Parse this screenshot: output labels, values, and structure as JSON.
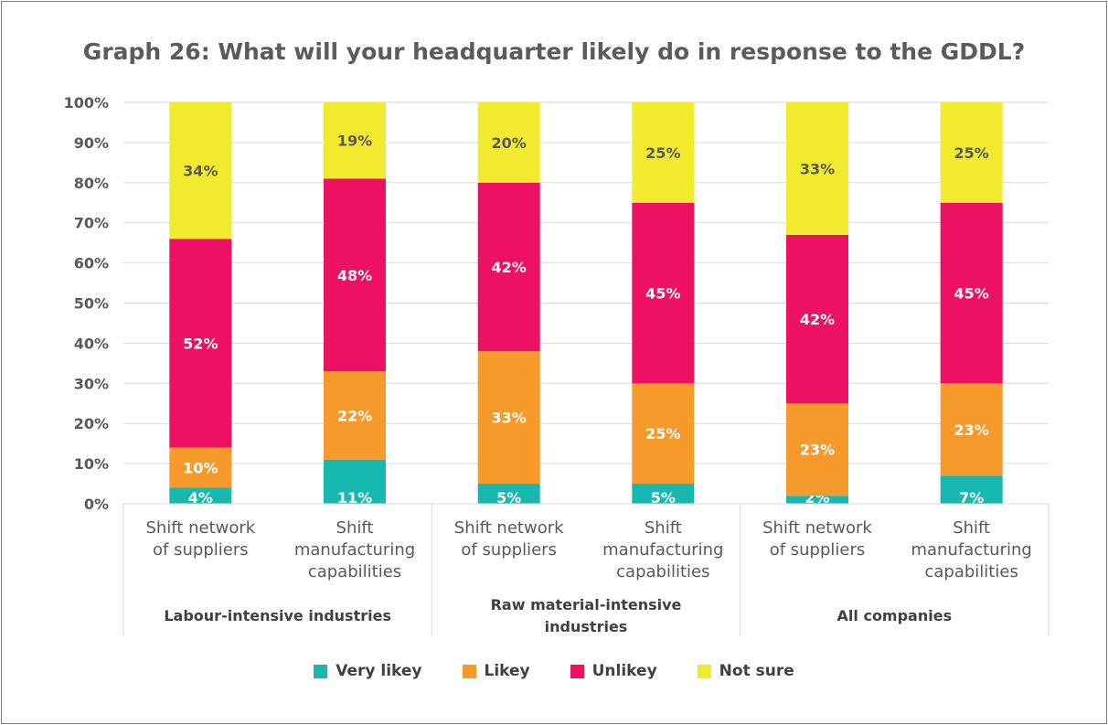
{
  "chart_data": {
    "type": "bar",
    "stacked": true,
    "title": "Graph 26: What will your headquarter likely do in response to the GDDL?",
    "ylim": [
      0,
      100
    ],
    "yticks": [
      "0%",
      "10%",
      "20%",
      "30%",
      "40%",
      "50%",
      "60%",
      "70%",
      "80%",
      "90%",
      "100%"
    ],
    "grid": true,
    "legend_position": "bottom",
    "groups": [
      {
        "label": "Labour-intensive industries",
        "categories": [
          "Shift network of suppliers",
          "Shift manufacturing capabilities"
        ]
      },
      {
        "label": "Raw material-intensive industries",
        "categories": [
          "Shift network of suppliers",
          "Shift manufacturing capabilities"
        ]
      },
      {
        "label": "All companies",
        "categories": [
          "Shift network of suppliers",
          "Shift manufacturing capabilities"
        ]
      }
    ],
    "categories": [
      "Shift network of suppliers",
      "Shift manufacturing capabilities",
      "Shift network of suppliers",
      "Shift manufacturing capabilities",
      "Shift network of suppliers",
      "Shift manufacturing capabilities"
    ],
    "series": [
      {
        "name": "Very likey",
        "color": "#17b8b0",
        "values": [
          4,
          11,
          5,
          5,
          2,
          7
        ],
        "labels": [
          "4%",
          "11%",
          "5%",
          "5%",
          "2%",
          "7%"
        ]
      },
      {
        "name": "Likey",
        "color": "#f59a2b",
        "values": [
          10,
          22,
          33,
          25,
          23,
          23
        ],
        "labels": [
          "10%",
          "22%",
          "33%",
          "25%",
          "23%",
          "23%"
        ]
      },
      {
        "name": "Unlikey",
        "color": "#ec1163",
        "values": [
          52,
          48,
          42,
          45,
          42,
          45
        ],
        "labels": [
          "52%",
          "48%",
          "42%",
          "45%",
          "42%",
          "45%"
        ]
      },
      {
        "name": "Not sure",
        "color": "#f1ea2e",
        "values": [
          34,
          19,
          20,
          25,
          33,
          25
        ],
        "labels": [
          "34%",
          "19%",
          "20%",
          "25%",
          "33%",
          "25%"
        ]
      }
    ]
  }
}
